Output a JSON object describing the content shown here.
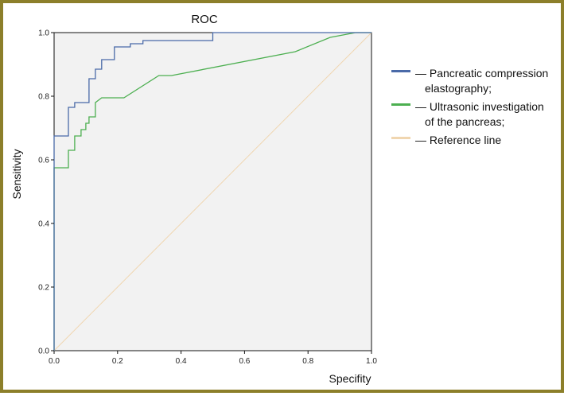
{
  "chart_data": {
    "type": "line",
    "title": "ROC",
    "xlabel": "Specifity",
    "ylabel": "Sensitivity",
    "xlim": [
      0,
      1
    ],
    "ylim": [
      0,
      1
    ],
    "xticks": [
      "0.0",
      "0.2",
      "0.4",
      "0.6",
      "0.8",
      "1.0"
    ],
    "yticks": [
      "0.0",
      "0.2",
      "0.4",
      "0.6",
      "0.8",
      "1.0"
    ],
    "grid": false,
    "legend_position": "right",
    "plot_background": "#f2f2f2",
    "series": [
      {
        "name": "— Pancreatic compression elastography;",
        "legend_lines": [
          "— Pancreatic compression",
          "elastography;"
        ],
        "color": "#4a6aa8",
        "x": [
          0,
          0,
          0.045,
          0.045,
          0.065,
          0.065,
          0.11,
          0.11,
          0.13,
          0.13,
          0.15,
          0.15,
          0.19,
          0.19,
          0.24,
          0.24,
          0.28,
          0.28,
          0.5,
          0.5,
          1.0
        ],
        "y": [
          0,
          0.675,
          0.675,
          0.765,
          0.765,
          0.78,
          0.78,
          0.855,
          0.855,
          0.885,
          0.885,
          0.915,
          0.915,
          0.955,
          0.955,
          0.965,
          0.965,
          0.975,
          0.975,
          1.0,
          1.0
        ]
      },
      {
        "name": "— Ultrasonic investigation of the pancreas;",
        "legend_lines": [
          "— Ultrasonic investigation",
          "of the pancreas;"
        ],
        "color": "#4caf50",
        "x": [
          0,
          0,
          0.045,
          0.045,
          0.065,
          0.065,
          0.085,
          0.085,
          0.1,
          0.1,
          0.11,
          0.11,
          0.13,
          0.13,
          0.15,
          0.22,
          0.33,
          0.37,
          0.76,
          0.87,
          0.95,
          1.0
        ],
        "y": [
          0,
          0.575,
          0.575,
          0.63,
          0.63,
          0.675,
          0.675,
          0.695,
          0.695,
          0.715,
          0.715,
          0.735,
          0.735,
          0.78,
          0.795,
          0.795,
          0.865,
          0.865,
          0.94,
          0.985,
          1.0,
          1.0
        ]
      },
      {
        "name": "— Reference line",
        "legend_lines": [
          "— Reference line"
        ],
        "color": "#f0d6b0",
        "x": [
          0,
          1
        ],
        "y": [
          0,
          1
        ]
      }
    ]
  }
}
